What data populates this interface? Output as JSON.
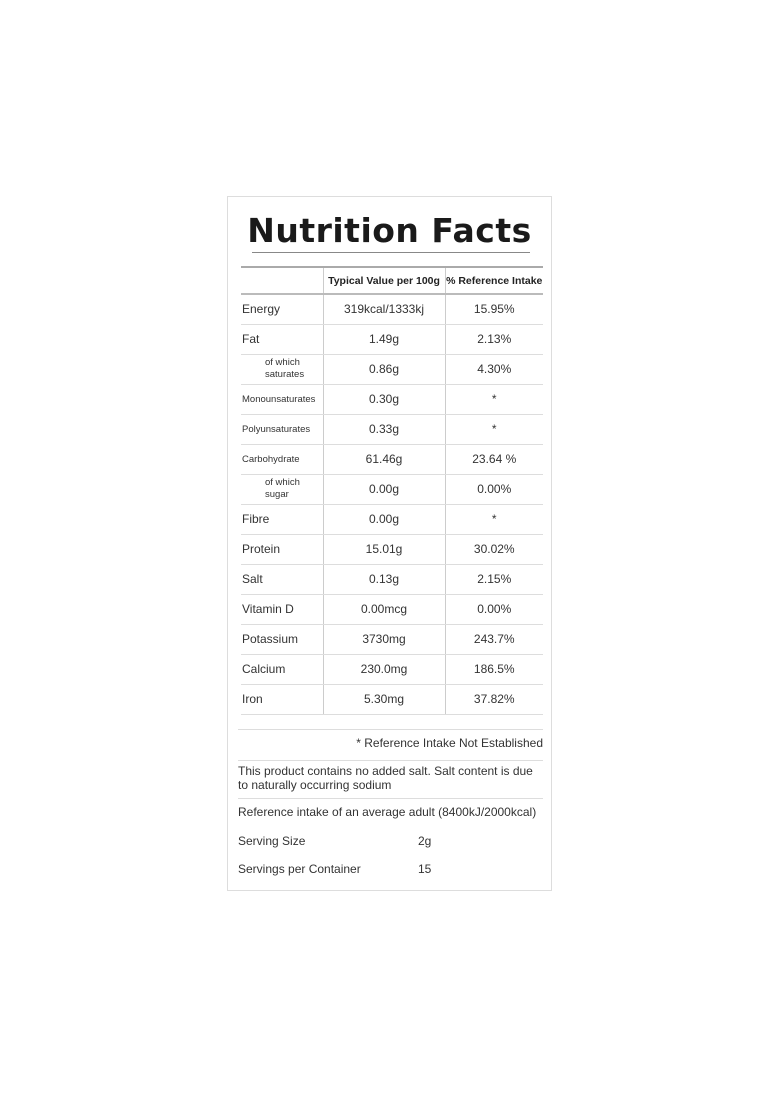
{
  "title": "Nutrition Facts",
  "headers": [
    "",
    "Typical Value per 100g",
    "% Reference Intake"
  ],
  "rows": [
    {
      "name": "Energy",
      "value": "319kcal/1333kj",
      "ri": "15.95%",
      "style": "n"
    },
    {
      "name": "Fat",
      "value": "1.49g",
      "ri": "2.13%",
      "style": "n"
    },
    {
      "name": "of which saturates",
      "value": "0.86g",
      "ri": "4.30%",
      "style": "sub"
    },
    {
      "name": "Monounsaturates",
      "value": "0.30g",
      "ri": "*",
      "style": "sm"
    },
    {
      "name": "Polyunsaturates",
      "value": "0.33g",
      "ri": "*",
      "style": "sm"
    },
    {
      "name": "Carbohydrate",
      "value": "61.46g",
      "ri": "23.64 %",
      "style": "sm"
    },
    {
      "name": "of which sugar",
      "value": "0.00g",
      "ri": "0.00%",
      "style": "sub"
    },
    {
      "name": "Fibre",
      "value": "0.00g",
      "ri": "*",
      "style": "n"
    },
    {
      "name": "Protein",
      "value": "15.01g",
      "ri": "30.02%",
      "style": "n"
    },
    {
      "name": "Salt",
      "value": "0.13g",
      "ri": "2.15%",
      "style": "n"
    },
    {
      "name": "Vitamin D",
      "value": "0.00mcg",
      "ri": "0.00%",
      "style": "n"
    },
    {
      "name": "Potassium",
      "value": "3730mg",
      "ri": "243.7%",
      "style": "n"
    },
    {
      "name": "Calcium",
      "value": "230.0mg",
      "ri": "186.5%",
      "style": "n"
    },
    {
      "name": "Iron",
      "value": "5.30mg",
      "ri": "37.82%",
      "style": "n"
    }
  ],
  "footnote": "* Reference Intake Not Established",
  "salt_note": "This product contains no added salt. Salt content is due to naturally occurring sodium",
  "reference_note": "Reference intake of an average adult (8400kJ/2000kcal)",
  "serving_size": {
    "label": "Serving Size",
    "value": "2g"
  },
  "servings": {
    "label": "Servings per Container",
    "value": "15"
  }
}
